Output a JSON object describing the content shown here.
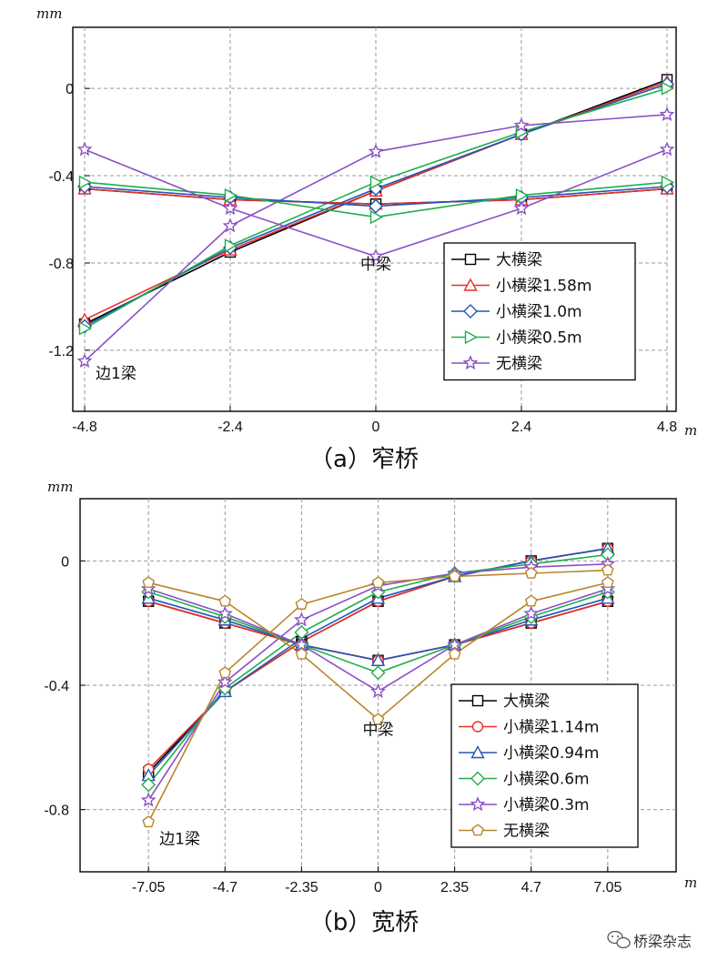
{
  "chart_data": [
    {
      "type": "line",
      "title": "（a）窄桥",
      "ylabel": "mm",
      "xlabel": "m",
      "x": [
        -4.8,
        -2.4,
        0,
        2.4,
        4.8
      ],
      "x_tick_labels": [
        "-4.8",
        "-2.4",
        "0",
        "2.4",
        "4.8"
      ],
      "y_ticks": [
        0,
        -0.4,
        -0.8,
        -1.2
      ],
      "y_tick_labels": [
        "0",
        "-0.4",
        "-0.8",
        "-1.2"
      ],
      "xlim": [
        -4.8,
        4.8
      ],
      "ylim": [
        -1.48,
        0.28
      ],
      "grid": true,
      "legend_position": "lower-right",
      "annotations": [
        {
          "text": "中梁",
          "x": 0,
          "y": -0.83
        },
        {
          "text": "边1梁",
          "x": -4.8,
          "y": -1.33
        }
      ],
      "series": [
        {
          "name": "大横梁",
          "color": "#000000",
          "marker": "square",
          "values": [
            -1.08,
            -0.75,
            -0.47,
            -0.21,
            0.04
          ]
        },
        {
          "name": "小横梁1.58m",
          "color": "#e8302a",
          "marker": "triangle",
          "values": [
            -1.06,
            -0.74,
            -0.47,
            -0.21,
            0.03
          ]
        },
        {
          "name": "小横梁1.0m",
          "color": "#2555b8",
          "marker": "diamond",
          "values": [
            -1.09,
            -0.73,
            -0.46,
            -0.21,
            0.02
          ]
        },
        {
          "name": "小横梁0.5m",
          "color": "#1fae4a",
          "marker": "triangle-right",
          "values": [
            -1.1,
            -0.72,
            -0.43,
            -0.2,
            0.0
          ]
        },
        {
          "name": "无横梁",
          "color": "#8a4fc6",
          "marker": "star",
          "values": [
            -1.25,
            -0.63,
            -0.29,
            -0.17,
            -0.12
          ]
        },
        {
          "name": "大横梁 (边1梁)",
          "color": "#000000",
          "marker": "square",
          "in_legend": false,
          "values": [
            -0.46,
            -0.51,
            -0.53,
            -0.51,
            -0.46
          ]
        },
        {
          "name": "小横梁1.58m (边1梁)",
          "color": "#e8302a",
          "marker": "triangle",
          "in_legend": false,
          "values": [
            -0.46,
            -0.51,
            -0.53,
            -0.51,
            -0.46
          ]
        },
        {
          "name": "小横梁1.0m (边1梁)",
          "color": "#2555b8",
          "marker": "diamond",
          "in_legend": false,
          "values": [
            -0.45,
            -0.5,
            -0.54,
            -0.5,
            -0.45
          ]
        },
        {
          "name": "小横梁0.5m (边1梁)",
          "color": "#1fae4a",
          "marker": "triangle-right",
          "in_legend": false,
          "values": [
            -0.43,
            -0.49,
            -0.59,
            -0.49,
            -0.43
          ]
        },
        {
          "name": "无横梁 (边1梁)",
          "color": "#8a4fc6",
          "marker": "star",
          "in_legend": false,
          "values": [
            -0.28,
            -0.55,
            -0.77,
            -0.55,
            -0.28
          ]
        }
      ]
    },
    {
      "type": "line",
      "title": "（b）宽桥",
      "ylabel": "mm",
      "xlabel": "m",
      "x": [
        -7.05,
        -4.7,
        -2.35,
        0,
        2.35,
        4.7,
        7.05
      ],
      "x_tick_labels": [
        "-7.05",
        "-4.7",
        "-2.35",
        "0",
        "2.35",
        "4.7",
        "7.05"
      ],
      "y_ticks": [
        0,
        -0.4,
        -0.8
      ],
      "y_tick_labels": [
        "0",
        "-0.4",
        "-0.8"
      ],
      "xlim": [
        -9.15,
        9.15
      ],
      "ylim": [
        -1.0,
        0.2
      ],
      "grid": true,
      "legend_position": "lower-right",
      "annotations": [
        {
          "text": "中梁",
          "x": 0,
          "y": -0.56
        },
        {
          "text": "边1梁",
          "x": -7.05,
          "y": -0.91
        }
      ],
      "series": [
        {
          "name": "大横梁",
          "color": "#000000",
          "marker": "square",
          "values": [
            -0.68,
            -0.42,
            -0.26,
            -0.13,
            -0.05,
            0.0,
            0.04
          ]
        },
        {
          "name": "小横梁1.14m",
          "color": "#e8302a",
          "marker": "circle",
          "values": [
            -0.67,
            -0.42,
            -0.26,
            -0.13,
            -0.05,
            0.0,
            0.04
          ]
        },
        {
          "name": "小横梁0.94m",
          "color": "#2555b8",
          "marker": "triangle",
          "values": [
            -0.69,
            -0.42,
            -0.25,
            -0.12,
            -0.05,
            0.0,
            0.04
          ]
        },
        {
          "name": "小横梁0.6m",
          "color": "#1fae4a",
          "marker": "diamond",
          "values": [
            -0.72,
            -0.41,
            -0.23,
            -0.1,
            -0.04,
            -0.01,
            0.02
          ]
        },
        {
          "name": "小横梁0.3m",
          "color": "#8a4fc6",
          "marker": "star",
          "values": [
            -0.77,
            -0.39,
            -0.19,
            -0.08,
            -0.04,
            -0.02,
            -0.01
          ]
        },
        {
          "name": "无横梁",
          "color": "#b8862b",
          "marker": "pentagon",
          "values": [
            -0.84,
            -0.36,
            -0.14,
            -0.07,
            -0.05,
            -0.04,
            -0.03
          ]
        },
        {
          "name": "大横梁 (边1梁)",
          "color": "#000000",
          "marker": "square",
          "in_legend": false,
          "values": [
            -0.13,
            -0.2,
            -0.27,
            -0.32,
            -0.27,
            -0.2,
            -0.13
          ]
        },
        {
          "name": "小横梁1.14m (边1梁)",
          "color": "#e8302a",
          "marker": "circle",
          "in_legend": false,
          "values": [
            -0.13,
            -0.2,
            -0.27,
            -0.32,
            -0.27,
            -0.2,
            -0.13
          ]
        },
        {
          "name": "小横梁0.94m (边1梁)",
          "color": "#2555b8",
          "marker": "triangle",
          "in_legend": false,
          "values": [
            -0.12,
            -0.19,
            -0.27,
            -0.32,
            -0.27,
            -0.19,
            -0.12
          ]
        },
        {
          "name": "小横梁0.6m (边1梁)",
          "color": "#1fae4a",
          "marker": "diamond",
          "in_legend": false,
          "values": [
            -0.1,
            -0.18,
            -0.27,
            -0.36,
            -0.27,
            -0.18,
            -0.1
          ]
        },
        {
          "name": "小横梁0.3m (边1梁)",
          "color": "#8a4fc6",
          "marker": "star",
          "in_legend": false,
          "values": [
            -0.09,
            -0.17,
            -0.27,
            -0.42,
            -0.27,
            -0.17,
            -0.09
          ]
        },
        {
          "name": "无横梁 (边1梁)",
          "color": "#b8862b",
          "marker": "pentagon",
          "in_legend": false,
          "values": [
            -0.07,
            -0.13,
            -0.3,
            -0.51,
            -0.3,
            -0.13,
            -0.07
          ]
        }
      ]
    }
  ],
  "watermark": {
    "text": "桥梁杂志",
    "icon": "wechat-icon"
  }
}
